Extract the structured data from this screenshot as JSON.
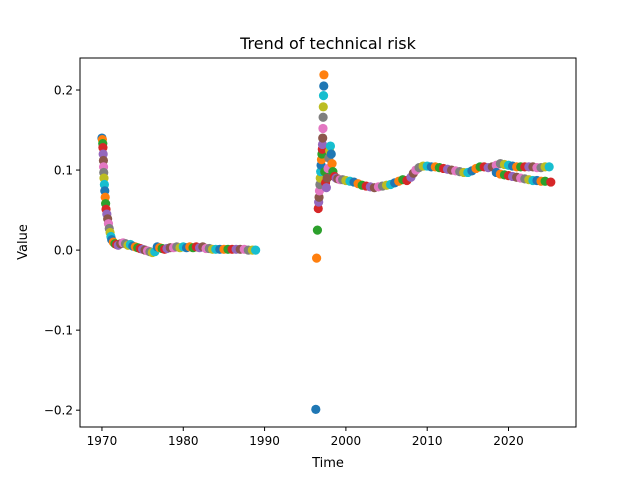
{
  "chart_data": {
    "type": "scatter",
    "title": "Trend of technical risk",
    "xlabel": "Time",
    "ylabel": "Value",
    "xlim": [
      1967.3,
      2028.3
    ],
    "ylim": [
      -0.221,
      0.24
    ],
    "xticks": [
      1970,
      1980,
      1990,
      2000,
      2010,
      2020
    ],
    "xtick_labels": [
      "1970",
      "1980",
      "1990",
      "2000",
      "2010",
      "2020"
    ],
    "yticks": [
      -0.2,
      -0.1,
      0.0,
      0.1,
      0.2
    ],
    "ytick_labels": [
      "−0.2",
      "−0.1",
      "0.0",
      "0.1",
      "0.2"
    ],
    "grid": false,
    "legend": "none",
    "palette": [
      "#1f77b4",
      "#ff7f0e",
      "#2ca02c",
      "#d62728",
      "#9467bd",
      "#8c564b",
      "#e377c2",
      "#7f7f7f",
      "#bcbd22",
      "#17becf"
    ],
    "segments": [
      {
        "name": "segment-1",
        "points": [
          [
            1970.0,
            0.14
          ],
          [
            1970.05,
            0.138
          ],
          [
            1970.1,
            0.133
          ],
          [
            1970.12,
            0.128
          ],
          [
            1970.15,
            0.12
          ],
          [
            1970.18,
            0.112
          ],
          [
            1970.2,
            0.104
          ],
          [
            1970.22,
            0.097
          ],
          [
            1970.25,
            0.09
          ],
          [
            1970.3,
            0.082
          ],
          [
            1970.35,
            0.074
          ],
          [
            1970.4,
            0.066
          ],
          [
            1970.45,
            0.058
          ],
          [
            1970.5,
            0.051
          ],
          [
            1970.6,
            0.045
          ],
          [
            1970.7,
            0.039
          ],
          [
            1970.8,
            0.033
          ],
          [
            1970.9,
            0.027
          ],
          [
            1971.0,
            0.022
          ],
          [
            1971.1,
            0.017
          ],
          [
            1971.2,
            0.013
          ],
          [
            1971.4,
            0.01
          ],
          [
            1971.6,
            0.008
          ],
          [
            1971.8,
            0.007
          ],
          [
            1972.0,
            0.006
          ],
          [
            1972.3,
            0.008
          ],
          [
            1972.6,
            0.009
          ],
          [
            1972.9,
            0.008
          ],
          [
            1973.2,
            0.006
          ],
          [
            1973.5,
            0.007
          ],
          [
            1973.8,
            0.005
          ],
          [
            1974.1,
            0.004
          ],
          [
            1974.4,
            0.003
          ],
          [
            1974.7,
            0.002
          ],
          [
            1975.0,
            0.001
          ],
          [
            1975.3,
            0.0
          ],
          [
            1975.6,
            -0.001
          ],
          [
            1975.9,
            -0.002
          ],
          [
            1976.2,
            -0.003
          ],
          [
            1976.5,
            -0.002
          ],
          [
            1976.8,
            0.004
          ],
          [
            1977.1,
            0.003
          ],
          [
            1977.4,
            0.002
          ],
          [
            1977.7,
            0.001
          ],
          [
            1978.0,
            0.002
          ],
          [
            1978.4,
            0.003
          ],
          [
            1978.8,
            0.003
          ],
          [
            1979.2,
            0.004
          ],
          [
            1979.6,
            0.003
          ],
          [
            1980.0,
            0.004
          ],
          [
            1980.4,
            0.003
          ],
          [
            1980.8,
            0.004
          ],
          [
            1981.2,
            0.003
          ],
          [
            1981.6,
            0.004
          ],
          [
            1982.0,
            0.003
          ],
          [
            1982.4,
            0.004
          ],
          [
            1982.8,
            0.002
          ],
          [
            1983.2,
            0.002
          ],
          [
            1983.6,
            0.001
          ],
          [
            1984.0,
            0.001
          ],
          [
            1984.5,
            0.001
          ],
          [
            1985.0,
            0.001
          ],
          [
            1985.5,
            0.001
          ],
          [
            1986.0,
            0.001
          ],
          [
            1986.5,
            0.001
          ],
          [
            1987.0,
            0.001
          ],
          [
            1987.5,
            0.001
          ],
          [
            1988.0,
            0.0
          ],
          [
            1988.5,
            0.0
          ],
          [
            1988.9,
            0.0
          ]
        ]
      },
      {
        "name": "segment-2",
        "points": [
          [
            1996.3,
            -0.199
          ],
          [
            1996.4,
            -0.01
          ],
          [
            1996.5,
            0.025
          ],
          [
            1996.6,
            0.052
          ],
          [
            1996.65,
            0.06
          ],
          [
            1996.7,
            0.066
          ],
          [
            1996.75,
            0.074
          ],
          [
            1996.8,
            0.082
          ],
          [
            1996.85,
            0.09
          ],
          [
            1996.9,
            0.098
          ],
          [
            1996.95,
            0.106
          ],
          [
            1997.0,
            0.113
          ],
          [
            1997.05,
            0.12
          ],
          [
            1997.1,
            0.126
          ],
          [
            1997.12,
            0.132
          ],
          [
            1997.15,
            0.14
          ],
          [
            1997.18,
            0.152
          ],
          [
            1997.2,
            0.166
          ],
          [
            1997.22,
            0.179
          ],
          [
            1997.25,
            0.193
          ],
          [
            1997.28,
            0.205
          ],
          [
            1997.3,
            0.219
          ],
          [
            1997.4,
            0.098
          ],
          [
            1997.5,
            0.084
          ],
          [
            1997.6,
            0.078
          ],
          [
            1997.7,
            0.09
          ],
          [
            1997.8,
            0.102
          ],
          [
            1997.9,
            0.115
          ],
          [
            1998.0,
            0.124
          ],
          [
            1998.1,
            0.13
          ],
          [
            1998.2,
            0.12
          ],
          [
            1998.3,
            0.108
          ],
          [
            1998.4,
            0.098
          ],
          [
            1998.6,
            0.092
          ],
          [
            1998.8,
            0.09
          ],
          [
            1999.0,
            0.089
          ],
          [
            1999.3,
            0.088
          ],
          [
            1999.6,
            0.088
          ],
          [
            2000.0,
            0.087
          ],
          [
            2000.5,
            0.086
          ],
          [
            2001.0,
            0.085
          ],
          [
            2001.5,
            0.083
          ],
          [
            2002.0,
            0.081
          ],
          [
            2002.5,
            0.08
          ],
          [
            2003.0,
            0.079
          ],
          [
            2003.5,
            0.078
          ],
          [
            2004.0,
            0.079
          ],
          [
            2004.5,
            0.08
          ],
          [
            2005.0,
            0.081
          ],
          [
            2005.5,
            0.082
          ],
          [
            2006.0,
            0.084
          ],
          [
            2006.5,
            0.086
          ],
          [
            2007.0,
            0.088
          ],
          [
            2007.5,
            0.087
          ],
          [
            2008.0,
            0.091
          ],
          [
            2008.3,
            0.096
          ],
          [
            2008.6,
            0.1
          ],
          [
            2009.0,
            0.103
          ],
          [
            2009.5,
            0.105
          ],
          [
            2010.0,
            0.105
          ],
          [
            2010.5,
            0.104
          ],
          [
            2011.0,
            0.104
          ],
          [
            2011.5,
            0.103
          ],
          [
            2012.0,
            0.102
          ],
          [
            2012.5,
            0.101
          ],
          [
            2013.0,
            0.1
          ],
          [
            2013.5,
            0.099
          ],
          [
            2014.0,
            0.098
          ],
          [
            2014.5,
            0.097
          ],
          [
            2015.0,
            0.097
          ],
          [
            2015.5,
            0.099
          ],
          [
            2016.0,
            0.102
          ],
          [
            2016.5,
            0.104
          ],
          [
            2017.0,
            0.104
          ],
          [
            2017.5,
            0.103
          ],
          [
            2018.0,
            0.104
          ],
          [
            2018.5,
            0.106
          ],
          [
            2019.0,
            0.108
          ],
          [
            2019.5,
            0.107
          ],
          [
            2020.0,
            0.106
          ],
          [
            2020.5,
            0.105
          ],
          [
            2021.0,
            0.104
          ],
          [
            2021.5,
            0.104
          ],
          [
            2022.0,
            0.104
          ],
          [
            2022.5,
            0.104
          ],
          [
            2023.0,
            0.104
          ],
          [
            2023.5,
            0.103
          ],
          [
            2024.0,
            0.103
          ],
          [
            2024.5,
            0.104
          ],
          [
            2025.0,
            0.104
          ],
          [
            2018.5,
            0.097
          ],
          [
            2019.0,
            0.095
          ],
          [
            2019.5,
            0.094
          ],
          [
            2020.0,
            0.093
          ],
          [
            2020.5,
            0.092
          ],
          [
            2021.0,
            0.091
          ],
          [
            2021.5,
            0.09
          ],
          [
            2022.0,
            0.089
          ],
          [
            2022.5,
            0.088
          ],
          [
            2023.0,
            0.087
          ],
          [
            2023.5,
            0.087
          ],
          [
            2024.0,
            0.086
          ],
          [
            2024.5,
            0.086
          ],
          [
            2025.2,
            0.085
          ]
        ]
      }
    ]
  }
}
